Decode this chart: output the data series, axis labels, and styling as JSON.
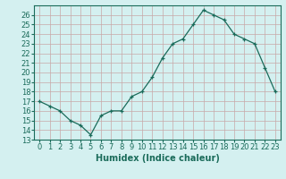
{
  "x": [
    0,
    1,
    2,
    3,
    4,
    5,
    6,
    7,
    8,
    9,
    10,
    11,
    12,
    13,
    14,
    15,
    16,
    17,
    18,
    19,
    20,
    21,
    22,
    23
  ],
  "y": [
    17,
    16.5,
    16,
    15,
    14.5,
    13.5,
    15.5,
    16,
    16,
    17.5,
    18,
    19.5,
    21.5,
    23,
    23.5,
    25,
    26.5,
    26,
    25.5,
    24,
    23.5,
    23,
    20.5,
    18
  ],
  "xlabel": "Humidex (Indice chaleur)",
  "xlim": [
    -0.5,
    23.5
  ],
  "ylim": [
    13,
    27
  ],
  "xticks": [
    0,
    1,
    2,
    3,
    4,
    5,
    6,
    7,
    8,
    9,
    10,
    11,
    12,
    13,
    14,
    15,
    16,
    17,
    18,
    19,
    20,
    21,
    22,
    23
  ],
  "yticks": [
    13,
    14,
    15,
    16,
    17,
    18,
    19,
    20,
    21,
    22,
    23,
    24,
    25,
    26
  ],
  "line_color": "#1a6b5a",
  "marker": "+",
  "bg_color": "#d4f0f0",
  "grid_color": "#b8d8d8",
  "label_fontsize": 7,
  "tick_fontsize": 6,
  "markersize": 3,
  "linewidth": 0.9
}
